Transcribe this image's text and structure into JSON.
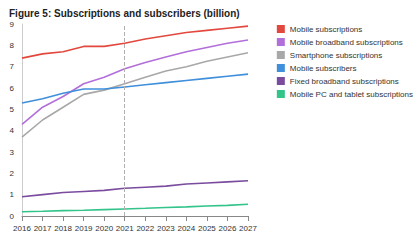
{
  "chart_data": {
    "type": "line",
    "title": "Figure 5: Subscriptions and subscribers (billion)",
    "x": [
      2016,
      2017,
      2018,
      2019,
      2020,
      2021,
      2022,
      2023,
      2024,
      2025,
      2026,
      2027
    ],
    "xlim": [
      2016,
      2027
    ],
    "xticks": [
      2016,
      2017,
      2018,
      2019,
      2020,
      2021,
      2022,
      2023,
      2024,
      2025,
      2026,
      2027
    ],
    "ylim": [
      0,
      9
    ],
    "yticks": [
      0,
      1,
      2,
      3,
      4,
      5,
      6,
      7,
      8,
      9
    ],
    "grid": false,
    "legend": "top-right",
    "forecast_line": 2021,
    "series": [
      {
        "name": "Mobile subscriptions",
        "color": "#e2483d",
        "values": [
          7.4,
          7.6,
          7.7,
          7.95,
          7.95,
          8.1,
          8.3,
          8.45,
          8.6,
          8.7,
          8.8,
          8.9
        ]
      },
      {
        "name": "Mobile broadband subscriptions",
        "color": "#b36fd9",
        "values": [
          4.3,
          5.1,
          5.6,
          6.2,
          6.5,
          6.9,
          7.2,
          7.45,
          7.7,
          7.9,
          8.1,
          8.25
        ]
      },
      {
        "name": "Smartphone subscriptions",
        "color": "#a8a8a8",
        "values": [
          3.7,
          4.5,
          5.1,
          5.7,
          5.9,
          6.2,
          6.5,
          6.8,
          7.0,
          7.25,
          7.45,
          7.65
        ]
      },
      {
        "name": "Mobile subscribers",
        "color": "#3f8fdb",
        "values": [
          5.3,
          5.5,
          5.75,
          5.95,
          5.95,
          6.05,
          6.15,
          6.25,
          6.35,
          6.45,
          6.55,
          6.65
        ]
      },
      {
        "name": "Fixed broadband subscriptions",
        "color": "#7a4c9e",
        "values": [
          0.9,
          1.0,
          1.1,
          1.15,
          1.2,
          1.3,
          1.35,
          1.4,
          1.5,
          1.55,
          1.6,
          1.65
        ]
      },
      {
        "name": "Mobile PC and tablet subscriptions",
        "color": "#33c48a",
        "values": [
          0.2,
          0.22,
          0.25,
          0.27,
          0.3,
          0.33,
          0.36,
          0.4,
          0.43,
          0.47,
          0.5,
          0.55
        ]
      }
    ]
  }
}
